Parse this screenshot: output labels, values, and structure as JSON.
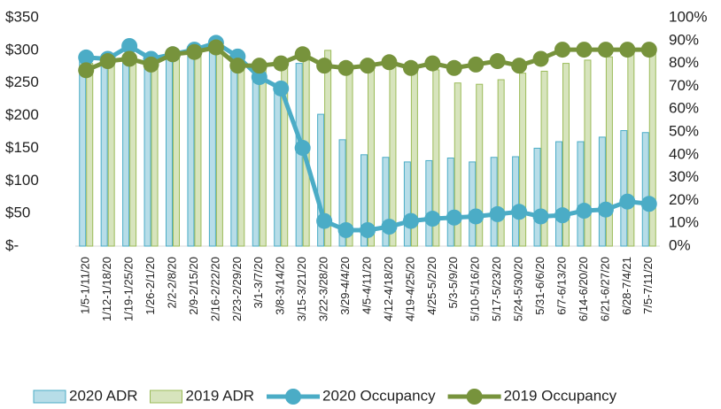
{
  "chart_data": {
    "type": "combo",
    "categories": [
      "1/5-1/11/20",
      "1/12-1/18/20",
      "1/19-1/25/20",
      "1/26-2/1/20",
      "2/2-2/8/20",
      "2/9-2/15/20",
      "2/16-2/22/20",
      "2/23-2/29/20",
      "3/1-3/7/20",
      "3/8-3/14/20",
      "3/15-3/21/20",
      "3/22-3/28/20",
      "3/29-4/4/20",
      "4/5-4/11/20",
      "4/12-4/18/20",
      "4/19-4/25/20",
      "4/25-5/2/20",
      "5/3-5/9/20",
      "5/10-5/16/20",
      "5/17-5/23/20",
      "5/24-5/30/20",
      "5/31-6/6/20",
      "6/7-6/13/20",
      "6/14-6/20/20",
      "6/21-6/27/20",
      "6/28-7/4/21",
      "7/5-7/11/20"
    ],
    "series": [
      {
        "name": "2020 ADR",
        "type": "bar",
        "color": "#b7dde8",
        "stroke": "#4bacc6",
        "values": [
          285,
          285,
          290,
          285,
          290,
          300,
          305,
          280,
          255,
          240,
          280,
          202,
          163,
          140,
          136,
          129,
          131,
          135,
          129,
          136,
          137,
          150,
          160,
          160,
          167,
          177,
          174
        ]
      },
      {
        "name": "2019 ADR",
        "type": "bar",
        "color": "#d7e4bd",
        "stroke": "#9bbb59",
        "values": [
          280,
          285,
          285,
          285,
          290,
          300,
          300,
          290,
          280,
          280,
          285,
          300,
          275,
          275,
          275,
          270,
          270,
          250,
          248,
          255,
          265,
          268,
          280,
          285,
          290,
          295,
          295
        ]
      },
      {
        "name": "2020 Occupancy",
        "type": "line",
        "axis": "y2",
        "color": "#4bacc6",
        "values": [
          82.6,
          82,
          87.6,
          82,
          84,
          86,
          89,
          83,
          74,
          69,
          43,
          11,
          7,
          7,
          8.5,
          11,
          12,
          12.5,
          13,
          14,
          15,
          13,
          13.5,
          15.5,
          16,
          19.5,
          18.5
        ]
      },
      {
        "name": "2019 Occupancy",
        "type": "line",
        "axis": "y2",
        "color": "#77933c",
        "values": [
          77,
          81,
          82,
          79.5,
          84,
          85,
          87,
          79,
          79,
          80,
          84,
          79,
          78,
          79,
          80.5,
          78,
          80,
          78,
          79.5,
          81,
          79,
          82,
          86,
          86,
          86,
          86,
          86
        ]
      }
    ],
    "ylim": [
      0,
      350
    ],
    "yticks": [
      {
        "value": 0,
        "label": "$-"
      },
      {
        "value": 50,
        "label": "$50"
      },
      {
        "value": 100,
        "label": "$100"
      },
      {
        "value": 150,
        "label": "$150"
      },
      {
        "value": 200,
        "label": "$200"
      },
      {
        "value": 250,
        "label": "$250"
      },
      {
        "value": 300,
        "label": "$300"
      },
      {
        "value": 350,
        "label": "$350"
      }
    ],
    "y2lim": [
      0,
      100
    ],
    "y2ticks": [
      {
        "value": 0,
        "label": "0%"
      },
      {
        "value": 10,
        "label": "10%"
      },
      {
        "value": 20,
        "label": "20%"
      },
      {
        "value": 30,
        "label": "30%"
      },
      {
        "value": 40,
        "label": "40%"
      },
      {
        "value": 50,
        "label": "50%"
      },
      {
        "value": 60,
        "label": "60%"
      },
      {
        "value": 70,
        "label": "70%"
      },
      {
        "value": 80,
        "label": "80%"
      },
      {
        "value": 90,
        "label": "90%"
      },
      {
        "value": 100,
        "label": "100%"
      }
    ],
    "grid": false,
    "legend": "bottom"
  }
}
